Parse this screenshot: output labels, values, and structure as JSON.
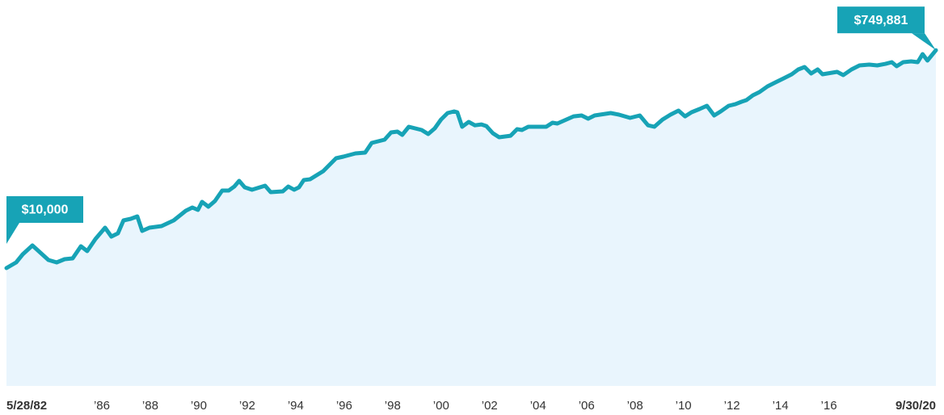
{
  "chart_data": {
    "type": "line",
    "x": [
      1982.4,
      1982.8,
      1983.07,
      1983.47,
      1983.8,
      1984.13,
      1984.47,
      1984.8,
      1985.13,
      1985.47,
      1985.73,
      1986.07,
      1986.47,
      1986.73,
      1987.0,
      1987.23,
      1987.53,
      1987.8,
      1988.0,
      1988.3,
      1988.8,
      1989.3,
      1989.8,
      1990.07,
      1990.3,
      1990.47,
      1990.73,
      1991.0,
      1991.3,
      1991.57,
      1991.8,
      1992.0,
      1992.23,
      1992.53,
      1993.07,
      1993.3,
      1993.8,
      1994.03,
      1994.27,
      1994.47,
      1994.67,
      1994.93,
      1995.47,
      1996.0,
      1996.3,
      1996.8,
      1997.2,
      1997.47,
      1998.0,
      1998.27,
      1998.53,
      1998.73,
      1999.0,
      1999.53,
      1999.8,
      2000.07,
      2000.33,
      2000.6,
      2000.87,
      2001.0,
      2001.2,
      2001.47,
      2001.73,
      2002.0,
      2002.2,
      2002.47,
      2002.73,
      2003.2,
      2003.47,
      2003.67,
      2003.93,
      2004.67,
      2004.93,
      2005.13,
      2005.8,
      2006.13,
      2006.4,
      2006.67,
      2007.33,
      2007.67,
      2008.13,
      2008.53,
      2008.87,
      2009.13,
      2009.47,
      2009.8,
      2010.13,
      2010.4,
      2010.67,
      2011.0,
      2011.3,
      2011.6,
      2011.87,
      2012.2,
      2012.47,
      2012.73,
      2012.93,
      2013.2,
      2013.47,
      2013.8,
      2014.13,
      2014.47,
      2014.8,
      2015.07,
      2015.33,
      2015.6,
      2015.87,
      2016.07,
      2016.67,
      2016.93,
      2017.27,
      2017.6,
      2018.0,
      2018.33,
      2018.67,
      2018.93,
      2019.13,
      2019.4,
      2019.73,
      2020.0,
      2020.2,
      2020.4,
      2020.75
    ],
    "values": [
      10000,
      11180,
      13120,
      15640,
      13550,
      11735,
      11180,
      11920,
      12110,
      15400,
      13990,
      17790,
      22255,
      18670,
      19890,
      25700,
      26530,
      27840,
      20880,
      22255,
      22970,
      25700,
      31140,
      33190,
      31630,
      37120,
      33740,
      37730,
      46470,
      46470,
      50320,
      56270,
      49530,
      47190,
      51110,
      44990,
      45710,
      50320,
      47190,
      49530,
      57160,
      58120,
      68210,
      88120,
      90930,
      96940,
      98530,
      119380,
      127320,
      146940,
      149400,
      140090,
      164400,
      154200,
      142300,
      159300,
      189900,
      215800,
      222900,
      219300,
      164400,
      181000,
      169400,
      172400,
      166900,
      144600,
      133500,
      137700,
      156700,
      154200,
      164400,
      164400,
      178100,
      175200,
      202300,
      205600,
      193000,
      205700,
      215800,
      209100,
      196100,
      205600,
      169400,
      164400,
      189500,
      209100,
      226500,
      202300,
      219300,
      233800,
      249200,
      205700,
      222900,
      249200,
      257100,
      270100,
      278700,
      306900,
      327400,
      365800,
      396500,
      429400,
      465300,
      512300,
      537400,
      472700,
      512300,
      465300,
      488100,
      458000,
      512300,
      554700,
      563500,
      554700,
      572300,
      591300,
      546000,
      591300,
      600800,
      591300,
      693900,
      610300,
      749881
    ],
    "value_labels": {
      "0": "$10,000",
      "122": "$749,881"
    },
    "color": "#17a3b6",
    "fill": "#e9f5fd",
    "log_y": true,
    "xlim": [
      1982.4,
      2020.75
    ],
    "ylim": [
      967,
      2028000
    ],
    "xticks": [
      {
        "value": 1982.4,
        "label": "5/28/82"
      },
      {
        "value": 1986,
        "label": "’86"
      },
      {
        "value": 1988,
        "label": "’88"
      },
      {
        "value": 1990,
        "label": "’90"
      },
      {
        "value": 1992,
        "label": "’92"
      },
      {
        "value": 1994,
        "label": "’94"
      },
      {
        "value": 1996,
        "label": "’96"
      },
      {
        "value": 1998,
        "label": "’98"
      },
      {
        "value": 2000,
        "label": "’00"
      },
      {
        "value": 2002,
        "label": "’02"
      },
      {
        "value": 2004,
        "label": "’04"
      },
      {
        "value": 2006,
        "label": "’06"
      },
      {
        "value": 2008,
        "label": "’08"
      },
      {
        "value": 2010,
        "label": "’10"
      },
      {
        "value": 2012,
        "label": "’12"
      },
      {
        "value": 2014,
        "label": "’14"
      },
      {
        "value": 2016,
        "label": "’16"
      },
      {
        "value": 2020.75,
        "label": "9/30/20"
      }
    ],
    "grid": false
  }
}
